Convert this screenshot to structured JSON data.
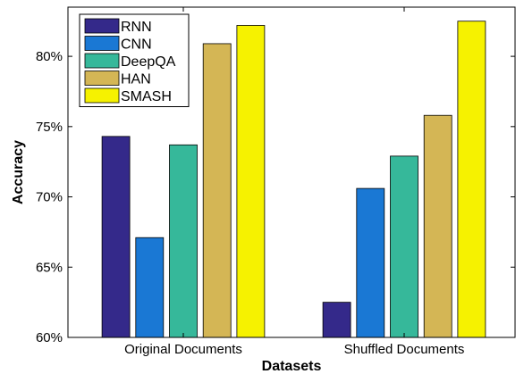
{
  "chart_data": {
    "type": "bar",
    "title": "",
    "xlabel": "Datasets",
    "ylabel": "Accuracy",
    "categories": [
      "Original Documents",
      "Shuffled Documents"
    ],
    "series": [
      {
        "name": "RNN",
        "color": "#34298a",
        "values": [
          74.3,
          62.5
        ]
      },
      {
        "name": "CNN",
        "color": "#1a78d4",
        "values": [
          67.1,
          70.6
        ]
      },
      {
        "name": "DeepQA",
        "color": "#36b89a",
        "values": [
          73.7,
          72.9
        ]
      },
      {
        "name": "HAN",
        "color": "#d4b655",
        "values": [
          80.9,
          75.8
        ]
      },
      {
        "name": "SMASH",
        "color": "#f6f200",
        "values": [
          82.2,
          82.5
        ]
      }
    ],
    "ylim": [
      60,
      83.5
    ],
    "yticks": [
      60,
      65,
      70,
      75,
      80
    ],
    "ytick_labels": [
      "60%",
      "65%",
      "70%",
      "75%",
      "80%"
    ],
    "grid": false,
    "legend": "top-left"
  }
}
